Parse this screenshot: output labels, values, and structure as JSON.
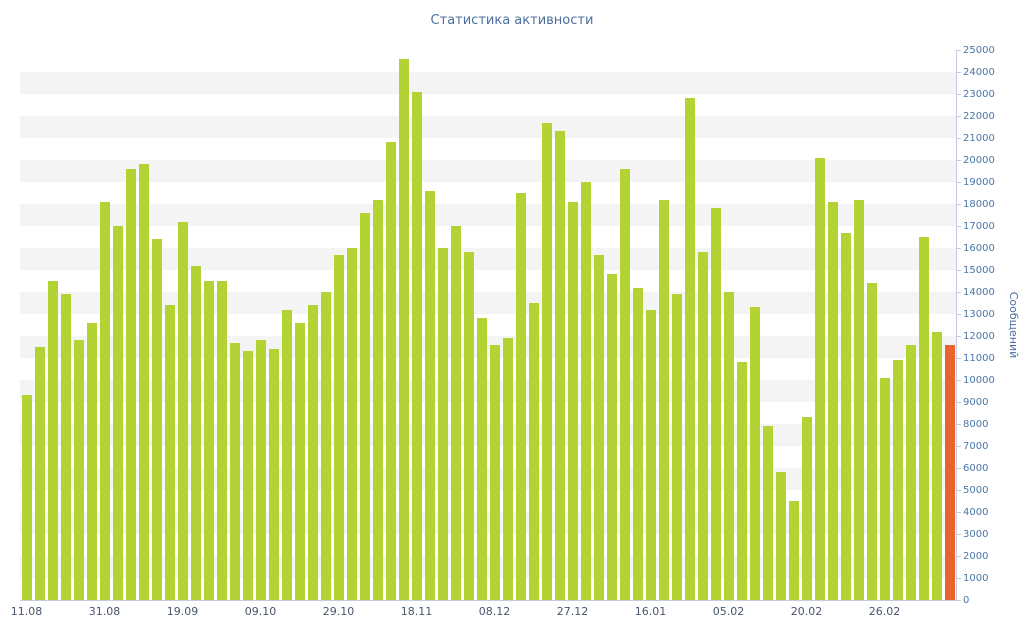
{
  "title": "Статистика активности",
  "chart_data": {
    "type": "bar",
    "title": "Статистика активности",
    "xlabel": "",
    "ylabel": "Сообщений",
    "ylim": [
      0,
      25000
    ],
    "y_tick_step": 1000,
    "y_ticks": [
      0,
      1000,
      2000,
      3000,
      4000,
      5000,
      6000,
      7000,
      8000,
      9000,
      10000,
      11000,
      12000,
      13000,
      14000,
      15000,
      16000,
      17000,
      18000,
      19000,
      20000,
      21000,
      22000,
      23000,
      24000,
      25000
    ],
    "x_tick_labels": [
      "11.08",
      "31.08",
      "19.09",
      "09.10",
      "29.10",
      "18.11",
      "08.12",
      "27.12",
      "16.01",
      "05.02",
      "20.02",
      "26.02"
    ],
    "x_tick_every": 6,
    "grid": "alternating-horizontal-bands",
    "legend": "none",
    "values": [
      9300,
      11500,
      14500,
      13900,
      11800,
      12600,
      18100,
      17000,
      19600,
      19800,
      16400,
      13400,
      17200,
      15200,
      14500,
      14500,
      11700,
      11300,
      11800,
      11400,
      13200,
      12600,
      13400,
      14000,
      15700,
      16000,
      17600,
      18200,
      20800,
      24600,
      23100,
      18600,
      16000,
      17000,
      15800,
      12800,
      11600,
      11900,
      18500,
      13500,
      21700,
      21300,
      18100,
      19000,
      15700,
      14800,
      19600,
      14200,
      13200,
      18200,
      13900,
      22800,
      15800,
      17800,
      14000,
      10800,
      13300,
      7900,
      5800,
      4500,
      8300,
      20100,
      18100,
      16700,
      18200,
      14400,
      10100,
      10900,
      11600,
      16500,
      12200,
      11600
    ],
    "highlight_last": true,
    "colors": {
      "bar": "#b3d335",
      "last_bar": "#e8642b",
      "title_text": "#4a6f9e",
      "y_axis_text": "#4a76a8",
      "x_axis_text": "#4a5568",
      "axis_line": "#c3cdd9",
      "band": "#f4f4f4"
    }
  }
}
